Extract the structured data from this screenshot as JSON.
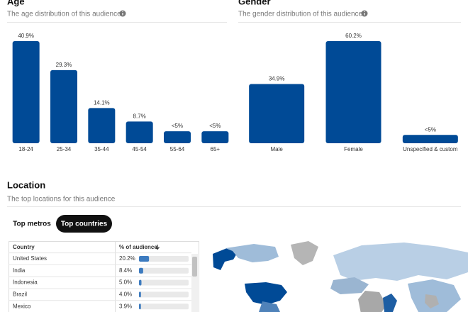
{
  "chart_data": [
    {
      "type": "bar",
      "title": "Age",
      "subtitle": "The age distribution of this audience",
      "categories": [
        "18-24",
        "25-34",
        "35-44",
        "45-54",
        "55-64",
        "65+"
      ],
      "values": [
        40.9,
        29.3,
        14.1,
        8.7,
        4.8,
        4.8
      ],
      "value_labels": [
        "40.9%",
        "29.3%",
        "14.1%",
        "8.7%",
        "<5%",
        "<5%"
      ],
      "color": "#004a96"
    },
    {
      "type": "bar",
      "title": "Gender",
      "subtitle": "The gender distribution of this audience",
      "categories": [
        "Male",
        "Female",
        "Unspecified & custom"
      ],
      "values": [
        34.9,
        60.2,
        4.9
      ],
      "value_labels": [
        "34.9%",
        "60.2%",
        "<5%"
      ],
      "color": "#004a96"
    }
  ],
  "location": {
    "title": "Location",
    "subtitle": "The top locations for this audience",
    "tabs": [
      "Top metros",
      "Top countries"
    ],
    "active_tab": 1,
    "table": {
      "columns": [
        "Country",
        "% of audience"
      ],
      "rows": [
        {
          "country": "United States",
          "share": 20.2,
          "share_label": "20.2%"
        },
        {
          "country": "India",
          "share": 8.4,
          "share_label": "8.4%"
        },
        {
          "country": "Indonesia",
          "share": 5.0,
          "share_label": "5.0%"
        },
        {
          "country": "Brazil",
          "share": 4.0,
          "share_label": "4.0%"
        },
        {
          "country": "Mexico",
          "share": 3.9,
          "share_label": "3.9%"
        }
      ]
    }
  }
}
